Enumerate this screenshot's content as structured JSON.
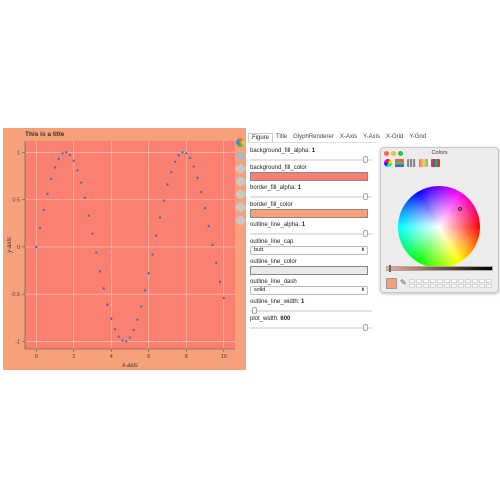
{
  "plot": {
    "title": "This is a title",
    "background_color": "#fa8072",
    "border_color": "#f7a17b",
    "glyph_color": "#4e6ca8",
    "xlabel": "x-axis",
    "ylabel": "y-axis"
  },
  "chart_data": {
    "type": "scatter",
    "title": "This is a title",
    "xlabel": "x-axis",
    "ylabel": "y-axis",
    "xlim": [
      -0.6,
      10.6
    ],
    "ylim": [
      -1.08,
      1.12
    ],
    "x_ticks": [
      "0",
      "2",
      "4",
      "6",
      "8",
      "10"
    ],
    "y_ticks": [
      "1",
      "0.5",
      "0",
      "-0.5",
      "-1"
    ],
    "x_tick_values": [
      0,
      2,
      4,
      6,
      8,
      10
    ],
    "y_tick_values": [
      1,
      0.5,
      0,
      -0.5,
      -1
    ],
    "grid": true,
    "series": [
      {
        "x": [
          0,
          0.2,
          0.4,
          0.6,
          0.8,
          1.0,
          1.2,
          1.4,
          1.6,
          1.8,
          2.0,
          2.2,
          2.4,
          2.6,
          2.8,
          3.0,
          3.2,
          3.4,
          3.6,
          3.8,
          4.0,
          4.2,
          4.4,
          4.6,
          4.8,
          5.0,
          5.2,
          5.4,
          5.6,
          5.8,
          6.0,
          6.2,
          6.4,
          6.6,
          6.8,
          7.0,
          7.2,
          7.4,
          7.6,
          7.8,
          8.0,
          8.2,
          8.4,
          8.6,
          8.8,
          9.0,
          9.2,
          9.4,
          9.6,
          9.8,
          10.0
        ],
        "y": [
          0,
          0.2,
          0.39,
          0.56,
          0.72,
          0.84,
          0.93,
          0.99,
          1.0,
          0.97,
          0.91,
          0.81,
          0.68,
          0.52,
          0.33,
          0.14,
          -0.06,
          -0.26,
          -0.44,
          -0.61,
          -0.76,
          -0.87,
          -0.95,
          -0.99,
          -1.0,
          -0.96,
          -0.88,
          -0.77,
          -0.63,
          -0.46,
          -0.28,
          -0.08,
          0.12,
          0.31,
          0.49,
          0.66,
          0.79,
          0.9,
          0.97,
          1.0,
          0.99,
          0.94,
          0.85,
          0.73,
          0.58,
          0.41,
          0.22,
          0.02,
          -0.17,
          -0.37,
          -0.54
        ]
      }
    ]
  },
  "tabs": [
    {
      "label": "Figure"
    },
    {
      "label": "Title"
    },
    {
      "label": "GlyphRenderer"
    },
    {
      "label": "X-Axis"
    },
    {
      "label": "Y-Axis"
    },
    {
      "label": "X-Grid"
    },
    {
      "label": "Y-Grid"
    }
  ],
  "props": {
    "background_fill_alpha": {
      "label": "background_fill_alpha:",
      "value": "1",
      "fraction": 1.0
    },
    "background_fill_color": {
      "label": "background_fill_color",
      "color": "#fa8072"
    },
    "border_fill_alpha": {
      "label": "border_fill_alpha:",
      "value": "1",
      "fraction": 1.0
    },
    "border_fill_color": {
      "label": "border_fill_color",
      "color": "#f7a17b"
    },
    "outline_line_alpha": {
      "label": "outline_line_alpha:",
      "value": "1",
      "fraction": 1.0
    },
    "outline_line_cap": {
      "label": "outline_line_cap",
      "value": "butt"
    },
    "outline_line_color": {
      "label": "outline_line_color",
      "color": "#e9e9e9"
    },
    "outline_line_dash": {
      "label": "outline_line_dash",
      "value": "solid"
    },
    "outline_line_width": {
      "label": "outline_line_width:",
      "value": "1",
      "fraction": 0.02
    },
    "plot_width": {
      "label": "plot_width:",
      "value": "600",
      "fraction": 1.0
    }
  },
  "colors_window": {
    "title": "Colors",
    "current_color": "#f7a17b",
    "brightness": 0.03,
    "close_color": "#fe5f57",
    "minimize_color": "#febc2e",
    "zoom_color": "#28c840"
  }
}
